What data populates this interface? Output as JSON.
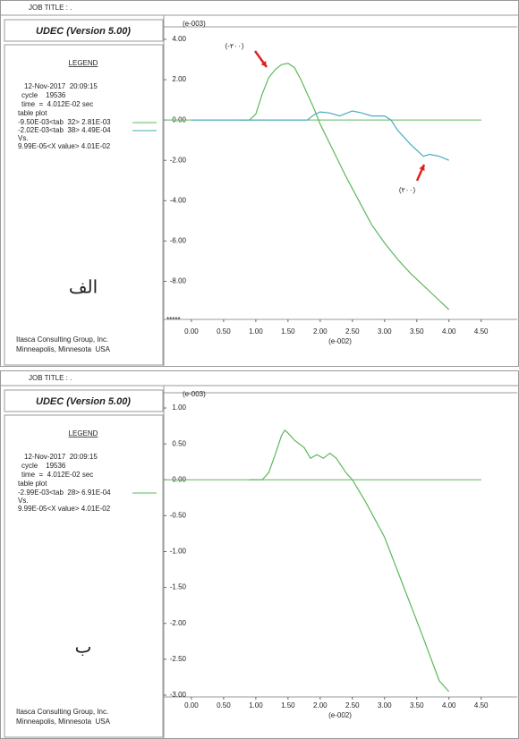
{
  "chart_data": [
    {
      "type": "line",
      "job_title": "JOB TITLE : .",
      "header": "UDEC (Version 5.00)",
      "legend_title": "LEGEND",
      "date": "12-Nov-2017  20:09:15",
      "cycle": "cycle    19536",
      "time": "time  =  4.012E-02 sec",
      "table_plot": "table plot",
      "vs": "Vs.",
      "x_value": "9.99E-05<X value> 4.01E-02",
      "footer": [
        "Itasca Consulting Group, Inc.",
        "Minneapolis, Minnesota  USA"
      ],
      "panel_label": "الف",
      "y_unit": "(e-003)",
      "x_unit": "(e-002)",
      "overflow_marker": "*****",
      "annotations": [
        "(-۲۰۰)",
        "(۲۰۰)"
      ],
      "xlim": [
        -0.43,
        5.06
      ],
      "ylim": [
        -9.8,
        4.4
      ],
      "xticks": [
        {
          "value": 0,
          "label": "0.00"
        },
        {
          "value": 0.5,
          "label": "0.50"
        },
        {
          "value": 1,
          "label": "1.00"
        },
        {
          "value": 1.5,
          "label": "1.50"
        },
        {
          "value": 2,
          "label": "2.00"
        },
        {
          "value": 2.5,
          "label": "2.50"
        },
        {
          "value": 3,
          "label": "3.00"
        },
        {
          "value": 3.5,
          "label": "3.50"
        },
        {
          "value": 4,
          "label": "4.00"
        },
        {
          "value": 4.5,
          "label": "4.50"
        }
      ],
      "yticks": [
        {
          "value": 4,
          "label": "4.00"
        },
        {
          "value": 2,
          "label": "2.00"
        },
        {
          "value": 0,
          "label": "0.00"
        },
        {
          "value": -2,
          "label": "-2.00"
        },
        {
          "value": -4,
          "label": "-4.00"
        },
        {
          "value": -6,
          "label": "-6.00"
        },
        {
          "value": -8,
          "label": "-8.00"
        }
      ],
      "series": [
        {
          "name": "-9.50E-03<tab  32> 2.81E-03",
          "color": "#5cb85c",
          "x": [
            0.75,
            0.9,
            1.0,
            1.1,
            1.2,
            1.3,
            1.4,
            1.5,
            1.6,
            1.7,
            1.8,
            1.9,
            2.0,
            2.2,
            2.4,
            2.6,
            2.8,
            3.0,
            3.2,
            3.4,
            3.6,
            3.8,
            4.0
          ],
          "values": [
            0,
            0,
            0.3,
            1.3,
            2.1,
            2.5,
            2.75,
            2.81,
            2.6,
            2.0,
            1.3,
            0.6,
            -0.2,
            -1.5,
            -2.8,
            -4.0,
            -5.2,
            -6.1,
            -6.9,
            -7.6,
            -8.2,
            -8.8,
            -9.4
          ]
        },
        {
          "name": "-2.02E-03<tab  38> 4.49E-04",
          "color": "#45adbd",
          "x": [
            0,
            1.8,
            1.9,
            2.0,
            2.15,
            2.3,
            2.5,
            2.65,
            2.8,
            3.0,
            3.1,
            3.2,
            3.4,
            3.6,
            3.7,
            3.85,
            4.0
          ],
          "values": [
            0,
            0,
            0.25,
            0.4,
            0.35,
            0.2,
            0.45,
            0.35,
            0.2,
            0.2,
            0,
            -0.5,
            -1.2,
            -1.8,
            -1.7,
            -1.8,
            -2.0
          ]
        }
      ]
    },
    {
      "type": "line",
      "job_title": "JOB TITLE : .",
      "header": "UDEC (Version 5.00)",
      "legend_title": "LEGEND",
      "date": "12-Nov-2017  20:09:15",
      "cycle": "cycle    19536",
      "time": "time  =  4.012E-02 sec",
      "table_plot": "table plot",
      "vs": "Vs.",
      "x_value": "9.99E-05<X value> 4.01E-02",
      "footer": [
        "Itasca Consulting Group, Inc.",
        "Minneapolis, Minnesota  USA"
      ],
      "panel_label": "ب",
      "y_unit": "(e-003)",
      "x_unit": "(e-002)",
      "xlim": [
        -0.43,
        5.06
      ],
      "ylim": [
        -3,
        1.15
      ],
      "xticks": [
        {
          "value": 0,
          "label": "0.00"
        },
        {
          "value": 0.5,
          "label": "0.50"
        },
        {
          "value": 1,
          "label": "1.00"
        },
        {
          "value": 1.5,
          "label": "1.50"
        },
        {
          "value": 2,
          "label": "2.00"
        },
        {
          "value": 2.5,
          "label": "2.50"
        },
        {
          "value": 3,
          "label": "3.00"
        },
        {
          "value": 3.5,
          "label": "3.50"
        },
        {
          "value": 4,
          "label": "4.00"
        },
        {
          "value": 4.5,
          "label": "4.50"
        }
      ],
      "yticks": [
        {
          "value": 1,
          "label": "1.00"
        },
        {
          "value": 0.5,
          "label": "0.50"
        },
        {
          "value": 0,
          "label": "0.00"
        },
        {
          "value": -0.5,
          "label": "-0.50"
        },
        {
          "value": -1,
          "label": "-1.00"
        },
        {
          "value": -1.5,
          "label": "-1.50"
        },
        {
          "value": -2,
          "label": "-2.00"
        },
        {
          "value": -2.5,
          "label": "-2.50"
        },
        {
          "value": -3,
          "label": "-3.00"
        }
      ],
      "series": [
        {
          "name": "-2.99E-03<tab  28> 6.91E-04",
          "color": "#5cb85c",
          "x": [
            0.9,
            1.1,
            1.2,
            1.3,
            1.4,
            1.45,
            1.5,
            1.6,
            1.75,
            1.85,
            1.95,
            2.05,
            2.15,
            2.25,
            2.4,
            2.5,
            2.7,
            3.0,
            3.3,
            3.6,
            3.85,
            4.0
          ],
          "values": [
            0,
            0,
            0.1,
            0.35,
            0.62,
            0.69,
            0.65,
            0.55,
            0.45,
            0.3,
            0.35,
            0.3,
            0.37,
            0.3,
            0.1,
            0,
            -0.3,
            -0.8,
            -1.5,
            -2.2,
            -2.8,
            -2.95
          ]
        }
      ]
    }
  ]
}
